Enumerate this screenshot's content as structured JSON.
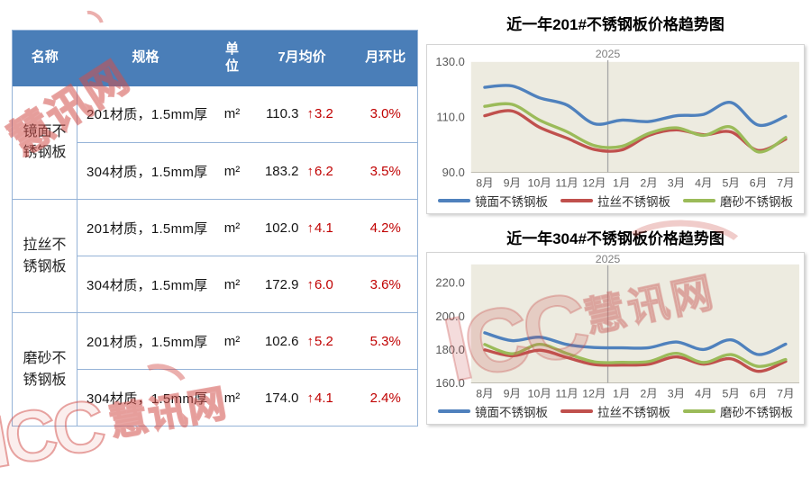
{
  "table": {
    "headers": [
      "名称",
      "规格",
      "单位",
      "7月均价",
      "月环比"
    ],
    "groups": [
      {
        "name": "镜面不锈钢板",
        "rows": [
          {
            "spec": "201材质，1.5mm厚",
            "unit": "m²",
            "price": "110.3",
            "arrow": "↑",
            "delta": "3.2",
            "mom": "3.0%"
          },
          {
            "spec": "304材质，1.5mm厚",
            "unit": "m²",
            "price": "183.2",
            "arrow": "↑",
            "delta": "6.2",
            "mom": "3.5%"
          }
        ]
      },
      {
        "name": "拉丝不锈钢板",
        "rows": [
          {
            "spec": "201材质，1.5mm厚",
            "unit": "m²",
            "price": "102.0",
            "arrow": "↑",
            "delta": "4.1",
            "mom": "4.2%"
          },
          {
            "spec": "304材质，1.5mm厚",
            "unit": "m²",
            "price": "172.9",
            "arrow": "↑",
            "delta": "6.0",
            "mom": "3.6%"
          }
        ]
      },
      {
        "name": "磨砂不锈钢板",
        "rows": [
          {
            "spec": "201材质，1.5mm厚",
            "unit": "m²",
            "price": "102.6",
            "arrow": "↑",
            "delta": "5.2",
            "mom": "5.3%"
          },
          {
            "spec": "304材质，1.5mm厚",
            "unit": "m²",
            "price": "174.0",
            "arrow": "↑",
            "delta": "4.1",
            "mom": "2.4%"
          }
        ]
      }
    ],
    "header_bg": "#4A7EB8",
    "border_color": "#95B3D7",
    "highlight_red": "#C00000"
  },
  "chart_data": [
    {
      "type": "line",
      "title": "近一年201#不锈钢板价格趋势图",
      "year_label": "2025",
      "year_line_between": [
        4,
        5
      ],
      "categories": [
        "8月",
        "9月",
        "10月",
        "11月",
        "12月",
        "1月",
        "2月",
        "3月",
        "4月",
        "5月",
        "6月",
        "7月"
      ],
      "ylim": [
        90,
        130
      ],
      "yticks": [
        {
          "v": 90,
          "label": "90.0"
        },
        {
          "v": 110,
          "label": "110.0"
        },
        {
          "v": 130,
          "label": "130.0"
        }
      ],
      "plot_bg": "#EDEBE0",
      "grid": false,
      "legend_position": "bottom",
      "series": [
        {
          "name": "镜面不锈钢板",
          "color": "#4F81BD",
          "values": [
            120.8,
            121.3,
            117.0,
            114.4,
            107.6,
            108.9,
            108.4,
            110.5,
            111.0,
            115.3,
            107.1,
            110.3
          ]
        },
        {
          "name": "拉丝不锈钢板",
          "color": "#C0504D",
          "values": [
            110.5,
            112.2,
            106.3,
            102.4,
            98.3,
            98.1,
            103.4,
            105.4,
            103.6,
            104.6,
            97.9,
            102.0
          ]
        },
        {
          "name": "磨砂不锈钢板",
          "color": "#9BBB59",
          "values": [
            113.9,
            114.6,
            108.9,
            104.7,
            99.7,
            99.4,
            104.1,
            106.1,
            103.4,
            106.4,
            97.4,
            102.6
          ]
        }
      ]
    },
    {
      "type": "line",
      "title": "近一年304#不锈钢板价格趋势图",
      "year_label": "2025",
      "year_line_between": [
        4,
        5
      ],
      "categories": [
        "8月",
        "9月",
        "10月",
        "11月",
        "12月",
        "1月",
        "2月",
        "3月",
        "4月",
        "5月",
        "6月",
        "7月"
      ],
      "ylim": [
        160,
        231
      ],
      "yticks": [
        {
          "v": 160,
          "label": "160.0"
        },
        {
          "v": 180,
          "label": "180.0"
        },
        {
          "v": 200,
          "label": "200.0"
        },
        {
          "v": 220,
          "label": "220.0"
        }
      ],
      "plot_bg": "#EDEBE0",
      "grid": false,
      "legend_position": "bottom",
      "series": [
        {
          "name": "镜面不锈钢板",
          "color": "#4F81BD",
          "values": [
            190.0,
            185.3,
            187.4,
            183.0,
            181.2,
            181.0,
            181.1,
            184.5,
            180.0,
            185.8,
            177.0,
            183.2
          ]
        },
        {
          "name": "拉丝不锈钢板",
          "color": "#C0504D",
          "values": [
            179.8,
            176.2,
            179.6,
            175.2,
            171.0,
            170.7,
            171.2,
            175.6,
            171.2,
            174.4,
            166.9,
            172.9
          ]
        },
        {
          "name": "磨砂不锈钢板",
          "color": "#9BBB59",
          "values": [
            183.0,
            177.4,
            183.1,
            177.6,
            172.6,
            172.3,
            172.8,
            177.7,
            172.2,
            176.9,
            169.9,
            174.0
          ]
        }
      ]
    }
  ],
  "watermark": {
    "icc": "ICC",
    "cn": "慧讯网",
    "color": "#D9534F"
  }
}
